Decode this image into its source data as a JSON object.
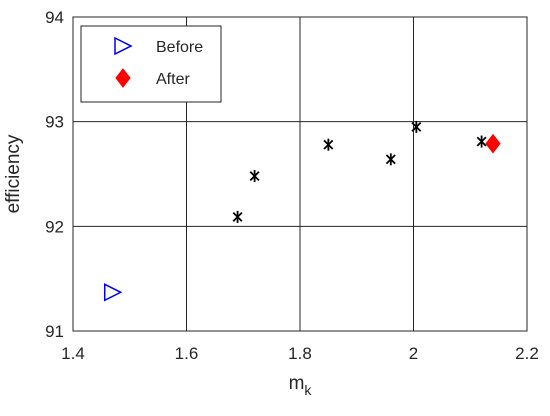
{
  "chart_data": {
    "type": "scatter",
    "title": "",
    "xlabel": "m",
    "xlabel_subscript": "k",
    "ylabel": "efficiency",
    "xlim": [
      1.4,
      2.2
    ],
    "ylim": [
      91,
      94
    ],
    "xticks": [
      1.4,
      1.6,
      1.8,
      2,
      2.2
    ],
    "xtick_labels": [
      "1.4",
      "1.6",
      "1.8",
      "2",
      "2.2"
    ],
    "yticks": [
      91,
      92,
      93,
      94
    ],
    "ytick_labels": [
      "91",
      "92",
      "93",
      "94"
    ],
    "grid": true,
    "legend_position": "top-left",
    "series": [
      {
        "name": "Before",
        "marker": "triangle-right",
        "color": "#0000FF",
        "points": [
          {
            "x": 1.47,
            "y": 91.37
          }
        ]
      },
      {
        "name": "After",
        "marker": "diamond",
        "color": "#FF0000",
        "points": [
          {
            "x": 2.14,
            "y": 92.79
          }
        ]
      },
      {
        "name": "",
        "marker": "asterisk",
        "color": "#000000",
        "points": [
          {
            "x": 1.69,
            "y": 92.09
          },
          {
            "x": 1.72,
            "y": 92.48
          },
          {
            "x": 1.85,
            "y": 92.78
          },
          {
            "x": 1.96,
            "y": 92.64
          },
          {
            "x": 2.005,
            "y": 92.95
          },
          {
            "x": 2.12,
            "y": 92.81
          }
        ]
      }
    ]
  }
}
